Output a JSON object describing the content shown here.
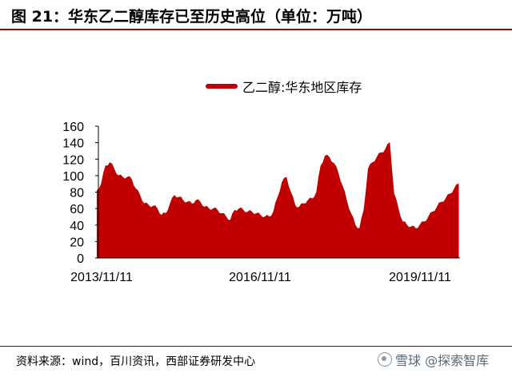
{
  "title": "图 21：华东乙二醇库存已至历史高位（单位：万吨）",
  "source": "资料来源：wind，百川资讯，西部证券研发中心",
  "watermark": "雪球 @探索智库",
  "colors": {
    "series": "#c00000",
    "rule": "#8a0000"
  },
  "chart_data": {
    "type": "area",
    "title": "",
    "xlabel": "",
    "ylabel": "",
    "ylim": [
      0,
      160
    ],
    "yticks": [
      0,
      20,
      40,
      60,
      80,
      100,
      120,
      140,
      160
    ],
    "x_tick_labels": [
      "2013/11/11",
      "2016/11/11",
      "2019/11/11"
    ],
    "x_range": [
      "2013/11/11",
      "2020/11/11"
    ],
    "legend": "top-center",
    "grid": false,
    "series": [
      {
        "name": "乙二醇:华东地区库存",
        "color": "#c00000",
        "x": [
          "2013-11",
          "2013-12",
          "2014-01",
          "2014-02",
          "2014-03",
          "2014-04",
          "2014-05",
          "2014-06",
          "2014-07",
          "2014-08",
          "2014-09",
          "2014-10",
          "2014-11",
          "2014-12",
          "2015-01",
          "2015-02",
          "2015-03",
          "2015-04",
          "2015-05",
          "2015-06",
          "2015-07",
          "2015-08",
          "2015-09",
          "2015-10",
          "2015-11",
          "2015-12",
          "2016-01",
          "2016-02",
          "2016-03",
          "2016-04",
          "2016-05",
          "2016-06",
          "2016-07",
          "2016-08",
          "2016-09",
          "2016-10",
          "2016-11",
          "2016-12",
          "2017-01",
          "2017-02",
          "2017-03",
          "2017-04",
          "2017-05",
          "2017-06",
          "2017-07",
          "2017-08",
          "2017-09",
          "2017-10",
          "2017-11",
          "2017-12",
          "2018-01",
          "2018-02",
          "2018-03",
          "2018-04",
          "2018-05",
          "2018-06",
          "2018-07",
          "2018-08",
          "2018-09",
          "2018-10",
          "2018-11",
          "2018-12",
          "2019-01",
          "2019-02",
          "2019-03",
          "2019-04",
          "2019-05",
          "2019-06",
          "2019-07",
          "2019-08",
          "2019-09",
          "2019-10",
          "2019-11",
          "2019-12",
          "2020-01",
          "2020-02",
          "2020-03",
          "2020-04",
          "2020-05",
          "2020-06",
          "2020-07",
          "2020-08",
          "2020-09",
          "2020-10",
          "2020-11"
        ],
        "values": [
          82,
          90,
          112,
          116,
          108,
          100,
          98,
          98,
          96,
          84,
          76,
          66,
          64,
          63,
          60,
          52,
          54,
          66,
          76,
          74,
          70,
          68,
          66,
          70,
          68,
          62,
          60,
          60,
          58,
          54,
          50,
          46,
          58,
          60,
          58,
          56,
          56,
          54,
          52,
          50,
          50,
          56,
          74,
          92,
          98,
          80,
          64,
          62,
          66,
          70,
          72,
          80,
          112,
          124,
          122,
          115,
          104,
          88,
          70,
          54,
          40,
          36,
          58,
          108,
          116,
          122,
          128,
          132,
          140,
          78,
          60,
          44,
          40,
          38,
          36,
          40,
          44,
          50,
          56,
          62,
          68,
          72,
          78,
          84,
          90
        ]
      }
    ]
  }
}
